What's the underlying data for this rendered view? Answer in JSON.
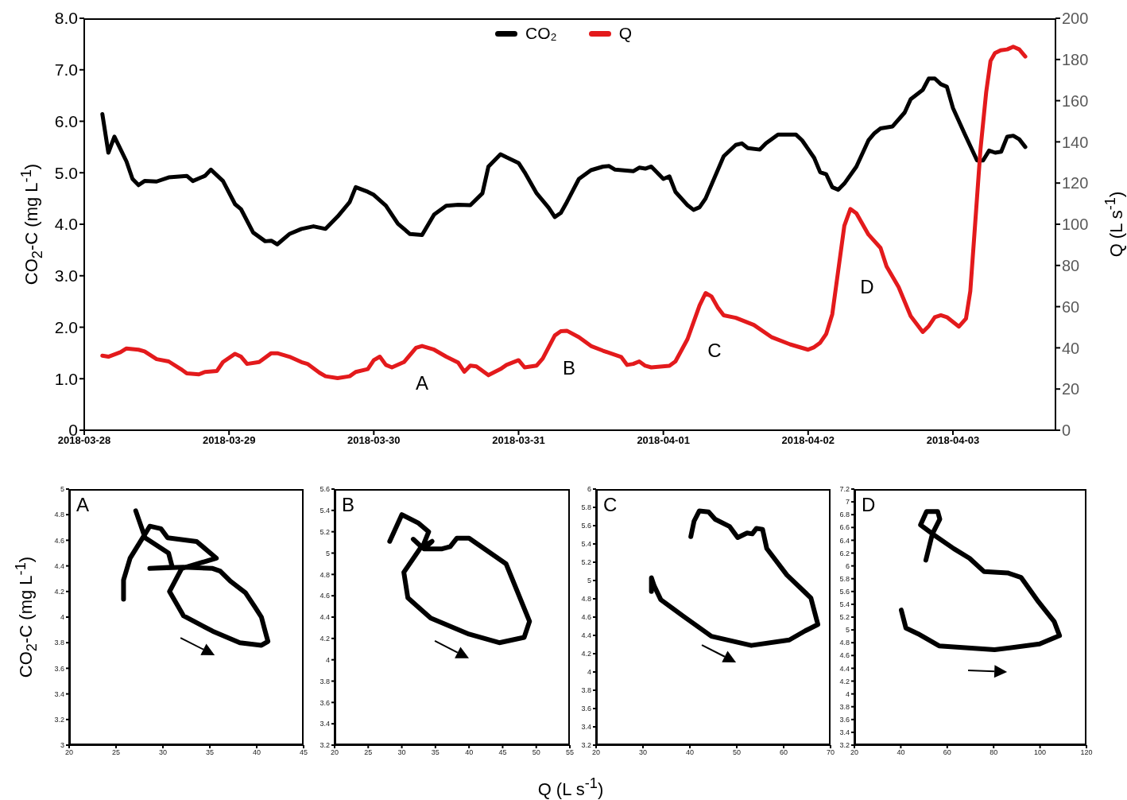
{
  "chart_data": [
    {
      "type": "line",
      "ylabel": "CO$_{2}$-C (mg L$^{-1}$)",
      "y2label": "Q (L s$^{-1}$)",
      "legend": "top",
      "xlim": [
        "2018-03-28",
        "2018-04-03T17:00"
      ],
      "xticks": [
        "2018-03-28",
        "2018-03-29",
        "2018-03-30",
        "2018-03-31",
        "2018-04-01",
        "2018-04-02",
        "2018-04-03"
      ],
      "ylim": [
        0,
        8
      ],
      "yticks": [
        0,
        {
          "value": 1,
          "label": "1.0"
        },
        {
          "value": 2,
          "label": "2.0"
        },
        {
          "value": 3,
          "label": "3.0"
        },
        {
          "value": 4,
          "label": "4.0"
        },
        {
          "value": 5,
          "label": "5.0"
        },
        {
          "value": 6,
          "label": "6.0"
        },
        {
          "value": 7,
          "label": "7.0"
        },
        {
          "value": 8,
          "label": "8.0"
        }
      ],
      "y2lim": [
        0,
        200
      ],
      "y2ticks": [
        0,
        20,
        40,
        60,
        80,
        100,
        120,
        140,
        160,
        180,
        200
      ],
      "series": [
        {
          "name": "CO₂",
          "color": "#000000",
          "x": [
            "2018-03-28T03:00",
            "2018-03-28T04:00",
            "2018-03-28T05:00",
            "2018-03-28T07:00",
            "2018-03-28T08:00",
            "2018-03-28T09:00",
            "2018-03-28T10:00",
            "2018-03-28T12:00",
            "2018-03-28T14:00",
            "2018-03-28T17:00",
            "2018-03-28T18:00",
            "2018-03-28T20:00",
            "2018-03-28T21:00",
            "2018-03-28T23:00",
            "2018-03-29T01:00",
            "2018-03-29T02:00",
            "2018-03-29T04:00",
            "2018-03-29T06:00",
            "2018-03-29T07:00",
            "2018-03-29T08:00",
            "2018-03-29T10:00",
            "2018-03-29T12:00",
            "2018-03-29T14:00",
            "2018-03-29T16:00",
            "2018-03-29T18:00",
            "2018-03-29T20:00",
            "2018-03-29T21:00",
            "2018-03-29T23:00",
            "2018-03-30T00:00",
            "2018-03-30T02:00",
            "2018-03-30T04:00",
            "2018-03-30T06:00",
            "2018-03-30T08:00",
            "2018-03-30T10:00",
            "2018-03-30T12:00",
            "2018-03-30T14:00",
            "2018-03-30T16:00",
            "2018-03-30T18:00",
            "2018-03-30T19:00",
            "2018-03-30T21:00",
            "2018-03-30T22:00",
            "2018-03-31T00:00",
            "2018-03-31T01:00",
            "2018-03-31T03:00",
            "2018-03-31T05:00",
            "2018-03-31T06:00",
            "2018-03-31T07:00",
            "2018-03-31T08:00",
            "2018-03-31T10:00",
            "2018-03-31T12:00",
            "2018-03-31T14:00",
            "2018-03-31T15:00",
            "2018-03-31T16:00",
            "2018-03-31T19:00",
            "2018-03-31T20:00",
            "2018-03-31T21:00",
            "2018-03-31T22:00",
            "2018-04-01T00:00",
            "2018-04-01T01:00",
            "2018-04-01T02:00",
            "2018-04-01T04:00",
            "2018-04-01T05:00",
            "2018-04-01T06:00",
            "2018-04-01T07:00",
            "2018-04-01T10:00",
            "2018-04-01T12:00",
            "2018-04-01T13:00",
            "2018-04-01T14:00",
            "2018-04-01T16:00",
            "2018-04-01T17:00",
            "2018-04-01T19:00",
            "2018-04-01T22:00",
            "2018-04-01T23:00",
            "2018-04-02T01:00",
            "2018-04-02T02:00",
            "2018-04-02T03:00",
            "2018-04-02T04:00",
            "2018-04-02T05:00",
            "2018-04-02T06:00",
            "2018-04-02T08:00",
            "2018-04-02T10:00",
            "2018-04-02T11:00",
            "2018-04-02T12:00",
            "2018-04-02T14:00",
            "2018-04-02T16:00",
            "2018-04-02T17:00",
            "2018-04-02T19:00",
            "2018-04-02T20:00",
            "2018-04-02T21:00",
            "2018-04-02T22:00",
            "2018-04-02T23:00",
            "2018-04-03T00:00",
            "2018-04-03T02:00",
            "2018-04-03T04:00",
            "2018-04-03T05:00",
            "2018-04-03T06:00",
            "2018-04-03T07:00",
            "2018-04-03T08:00",
            "2018-04-03T09:00",
            "2018-04-03T10:00",
            "2018-04-03T11:00",
            "2018-04-03T12:00"
          ],
          "values": [
            6.14,
            5.39,
            5.7,
            5.22,
            4.88,
            4.76,
            4.84,
            4.83,
            4.91,
            4.94,
            4.84,
            4.94,
            5.06,
            4.84,
            4.39,
            4.29,
            3.84,
            3.67,
            3.68,
            3.61,
            3.81,
            3.91,
            3.96,
            3.91,
            4.15,
            4.43,
            4.72,
            4.63,
            4.57,
            4.36,
            4.01,
            3.81,
            3.79,
            4.19,
            4.36,
            4.38,
            4.37,
            4.6,
            5.12,
            5.36,
            5.3,
            5.19,
            5.01,
            4.6,
            4.32,
            4.14,
            4.22,
            4.43,
            4.88,
            5.05,
            5.12,
            5.13,
            5.06,
            5.03,
            5.1,
            5.08,
            5.12,
            4.88,
            4.93,
            4.63,
            4.37,
            4.28,
            4.33,
            4.5,
            5.32,
            5.54,
            5.57,
            5.48,
            5.45,
            5.57,
            5.74,
            5.74,
            5.63,
            5.29,
            5.01,
            4.97,
            4.72,
            4.67,
            4.79,
            5.12,
            5.63,
            5.77,
            5.86,
            5.9,
            6.17,
            6.43,
            6.61,
            6.83,
            6.83,
            6.72,
            6.67,
            6.26,
            5.74,
            5.24,
            5.24,
            5.43,
            5.39,
            5.41,
            5.7,
            5.72,
            5.65,
            5.5
          ]
        },
        {
          "name": "Q",
          "color": "#e31a1c",
          "axis": "y2",
          "x": [
            "2018-03-28T03:00",
            "2018-03-28T04:00",
            "2018-03-28T06:00",
            "2018-03-28T07:00",
            "2018-03-28T09:00",
            "2018-03-28T10:00",
            "2018-03-28T12:00",
            "2018-03-28T14:00",
            "2018-03-28T16:00",
            "2018-03-28T17:00",
            "2018-03-28T19:00",
            "2018-03-28T20:00",
            "2018-03-28T22:00",
            "2018-03-28T23:00",
            "2018-03-29T01:00",
            "2018-03-29T02:00",
            "2018-03-29T03:00",
            "2018-03-29T05:00",
            "2018-03-29T07:00",
            "2018-03-29T08:00",
            "2018-03-29T10:00",
            "2018-03-29T12:00",
            "2018-03-29T13:00",
            "2018-03-29T15:00",
            "2018-03-29T16:00",
            "2018-03-29T18:00",
            "2018-03-29T20:00",
            "2018-03-29T21:00",
            "2018-03-29T23:00",
            "2018-03-30T00:00",
            "2018-03-30T01:00",
            "2018-03-30T02:00",
            "2018-03-30T03:00",
            "2018-03-30T05:00",
            "2018-03-30T07:00",
            "2018-03-30T08:00",
            "2018-03-30T10:00",
            "2018-03-30T12:00",
            "2018-03-30T14:00",
            "2018-03-30T15:00",
            "2018-03-30T16:00",
            "2018-03-30T17:00",
            "2018-03-30T19:00",
            "2018-03-30T21:00",
            "2018-03-30T22:00",
            "2018-03-31T00:00",
            "2018-03-31T01:00",
            "2018-03-31T03:00",
            "2018-03-31T04:00",
            "2018-03-31T06:00",
            "2018-03-31T07:00",
            "2018-03-31T08:00",
            "2018-03-31T10:00",
            "2018-03-31T12:00",
            "2018-03-31T14:00",
            "2018-03-31T17:00",
            "2018-03-31T18:00",
            "2018-03-31T19:00",
            "2018-03-31T20:00",
            "2018-03-31T21:00",
            "2018-03-31T22:00",
            "2018-04-01T01:00",
            "2018-04-01T02:00",
            "2018-04-01T04:00",
            "2018-04-01T06:00",
            "2018-04-01T07:00",
            "2018-04-01T08:00",
            "2018-04-01T09:00",
            "2018-04-01T10:00",
            "2018-04-01T12:00",
            "2018-04-01T15:00",
            "2018-04-01T18:00",
            "2018-04-01T21:00",
            "2018-04-02T00:00",
            "2018-04-02T01:00",
            "2018-04-02T02:00",
            "2018-04-02T03:00",
            "2018-04-02T04:00",
            "2018-04-02T05:00",
            "2018-04-02T06:00",
            "2018-04-02T07:00",
            "2018-04-02T08:00",
            "2018-04-02T10:00",
            "2018-04-02T12:00",
            "2018-04-02T13:00",
            "2018-04-02T15:00",
            "2018-04-02T17:00",
            "2018-04-02T19:00",
            "2018-04-02T20:00",
            "2018-04-02T21:00",
            "2018-04-02T22:00",
            "2018-04-02T23:00",
            "2018-04-03T01:00",
            "2018-04-03T02:10",
            "2018-04-03T02:53",
            "2018-04-03T03:36",
            "2018-04-03T04:34",
            "2018-04-03T05:31",
            "2018-04-03T06:14",
            "2018-04-03T06:58",
            "2018-04-03T07:55",
            "2018-04-03T09:00",
            "2018-04-03T10:00",
            "2018-04-03T11:00",
            "2018-04-03T12:00"
          ],
          "values": [
            36.2,
            35.7,
            37.9,
            39.7,
            39.1,
            38.3,
            34.5,
            33.4,
            29.7,
            27.6,
            27.1,
            28.3,
            28.8,
            33.1,
            37.1,
            35.7,
            32.2,
            33.1,
            37.4,
            37.4,
            35.7,
            33.1,
            32.2,
            27.9,
            26.2,
            25.3,
            26.2,
            28.3,
            29.7,
            34.0,
            35.7,
            31.7,
            30.5,
            33.1,
            40.0,
            40.9,
            39.1,
            35.7,
            32.8,
            28.4,
            31.4,
            31.0,
            26.7,
            29.7,
            31.7,
            34.0,
            30.5,
            31.4,
            34.8,
            46.0,
            48.1,
            48.3,
            45.2,
            40.9,
            38.6,
            35.6,
            31.7,
            32.2,
            33.4,
            31.3,
            30.5,
            31.3,
            33.4,
            44.2,
            60.6,
            66.6,
            64.9,
            59.7,
            55.8,
            54.6,
            51.1,
            45.1,
            41.7,
            39.1,
            40.3,
            42.5,
            46.8,
            56.3,
            77.8,
            99.3,
            107.4,
            105.3,
            95.0,
            88.5,
            79.5,
            69.5,
            55.4,
            47.7,
            50.6,
            54.9,
            55.8,
            54.9,
            50.3,
            54.2,
            67.5,
            96.7,
            136.3,
            164.2,
            179.3,
            183.1,
            184.5,
            184.9,
            186.2,
            184.9,
            181.4
          ]
        }
      ],
      "annotations": [
        "A",
        "B",
        "C",
        "D"
      ]
    },
    {
      "type": "line",
      "ylabel": "CO$_{2}$-C (mg L$^{-1}$)",
      "xlim": [
        20,
        45
      ],
      "xticks": [
        20,
        25,
        30,
        35,
        40,
        45
      ],
      "ylim": [
        3,
        5
      ],
      "yticks": [
        3,
        3.2,
        3.4,
        3.6,
        3.8,
        4,
        4.2,
        4.4,
        4.6,
        4.8,
        5
      ],
      "annotations": [
        "A"
      ],
      "series": [
        {
          "color": "#000000",
          "x": [
            27.1,
            28.1,
            30.6,
            31.0,
            28.6,
            32.2,
            35.3,
            36.1,
            37.2,
            38.8,
            39.8,
            40.5,
            40.9,
            41.2,
            40.5,
            38.2,
            35.3,
            32.2,
            30.7,
            32.0,
            35.7,
            33.6,
            30.5,
            29.8,
            28.6,
            28.1,
            26.5,
            25.8,
            25.8
          ],
          "values": [
            4.83,
            4.62,
            4.5,
            4.39,
            4.38,
            4.39,
            4.38,
            4.36,
            4.28,
            4.19,
            4.08,
            4.0,
            3.89,
            3.81,
            3.78,
            3.8,
            3.89,
            4.01,
            4.2,
            4.38,
            4.46,
            4.59,
            4.62,
            4.69,
            4.71,
            4.65,
            4.46,
            4.29,
            4.14
          ]
        }
      ]
    },
    {
      "type": "line",
      "xlabel": "Q (L s$^{-1}$)",
      "xlim": [
        20,
        55
      ],
      "xticks": [
        20,
        25,
        30,
        35,
        40,
        45,
        50,
        55
      ],
      "ylim": [
        3.2,
        5.6
      ],
      "yticks": [
        3.2,
        3.4,
        3.6,
        3.8,
        4,
        4.2,
        4.4,
        4.6,
        4.8,
        5,
        5.2,
        5.4,
        5.6
      ],
      "annotations": [
        "B"
      ],
      "series": [
        {
          "color": "#000000",
          "x": [
            28.2,
            30.0,
            32.5,
            34.0,
            33.1,
            34.5,
            33.3,
            36.0,
            37.2,
            38.2,
            40.0,
            45.5,
            49.0,
            48.2,
            44.5,
            40.0,
            34.3,
            30.9,
            30.3,
            32.9,
            31.7
          ],
          "values": [
            5.11,
            5.36,
            5.28,
            5.2,
            5.06,
            5.11,
            5.04,
            5.04,
            5.06,
            5.14,
            5.14,
            4.9,
            4.36,
            4.21,
            4.16,
            4.24,
            4.39,
            4.58,
            4.82,
            5.06,
            5.13
          ]
        }
      ]
    },
    {
      "type": "line",
      "xlim": [
        20,
        70
      ],
      "xticks": [
        20,
        30,
        40,
        50,
        60,
        70
      ],
      "ylim": [
        3.2,
        6
      ],
      "yticks": [
        3.2,
        3.4,
        3.6,
        3.8,
        4,
        4.2,
        4.4,
        4.6,
        4.8,
        5,
        5.2,
        5.4,
        5.6,
        5.8,
        6
      ],
      "annotations": [
        "C"
      ],
      "series": [
        {
          "color": "#000000",
          "x": [
            40.2,
            40.9,
            42.0,
            44.0,
            45.4,
            48.5,
            50.2,
            52.2,
            53.3,
            54.2,
            55.5,
            56.4,
            60.7,
            65.8,
            67.3,
            64.6,
            61.2,
            53.1,
            44.6,
            38.6,
            33.8,
            32.4,
            31.8,
            31.8
          ],
          "values": [
            5.48,
            5.65,
            5.76,
            5.75,
            5.67,
            5.59,
            5.47,
            5.52,
            5.51,
            5.57,
            5.56,
            5.35,
            5.06,
            4.81,
            4.52,
            4.45,
            4.35,
            4.29,
            4.39,
            4.61,
            4.79,
            4.94,
            5.03,
            4.88
          ]
        }
      ]
    },
    {
      "type": "line",
      "xlim": [
        20,
        120
      ],
      "xticks": [
        20,
        40,
        60,
        80,
        100,
        120
      ],
      "ylim": [
        3.2,
        7.2
      ],
      "yticks": [
        3.2,
        3.4,
        3.6,
        3.8,
        4,
        4.2,
        4.4,
        4.6,
        4.8,
        5,
        5.2,
        5.4,
        5.6,
        5.8,
        6,
        6.2,
        6.4,
        6.6,
        6.8,
        7,
        7.2
      ],
      "annotations": [
        "D"
      ],
      "series": [
        {
          "color": "#000000",
          "x": [
            50.8,
            53.6,
            56.8,
            55.9,
            51.1,
            48.5,
            54.8,
            62.8,
            69.6,
            75.9,
            86.1,
            91.8,
            99.3,
            106.1,
            108.4,
            99.8,
            80.4,
            56.5,
            47.4,
            42.2,
            40.2
          ],
          "values": [
            6.09,
            6.5,
            6.73,
            6.85,
            6.85,
            6.64,
            6.47,
            6.27,
            6.12,
            5.91,
            5.89,
            5.82,
            5.44,
            5.13,
            4.91,
            4.78,
            4.69,
            4.75,
            4.94,
            5.03,
            5.31
          ]
        }
      ]
    }
  ]
}
